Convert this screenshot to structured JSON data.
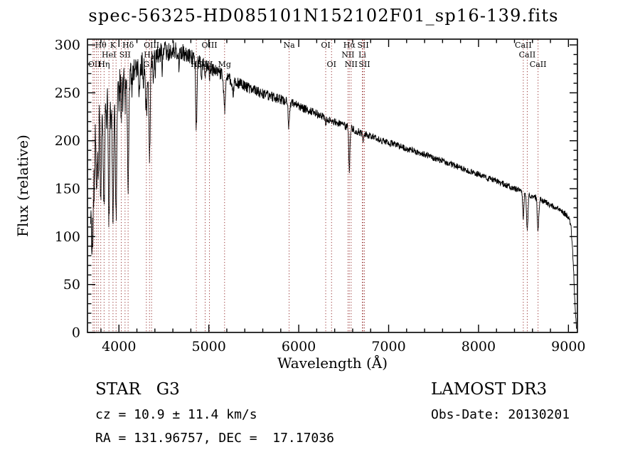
{
  "title": "spec-56325-HD085101N152102F01_sp16-139.fits",
  "footer": {
    "class_label": "STAR   G3",
    "survey": "LAMOST DR3",
    "cz": "cz = 10.9 ± 11.4 km/s",
    "obs_date": "Obs-Date: 20130201",
    "coords": "RA = 131.96757, DEC =  17.17036"
  },
  "chart_data": {
    "type": "line",
    "title": "spec-56325-HD085101N152102F01_sp16-139.fits",
    "xlabel": "Wavelength (Å)",
    "ylabel": "Flux (relative)",
    "xlim": [
      3650,
      9100
    ],
    "ylim": [
      0,
      306
    ],
    "xticks": [
      4000,
      5000,
      6000,
      7000,
      8000,
      9000
    ],
    "yticks": [
      0,
      50,
      100,
      150,
      200,
      250,
      300
    ],
    "x_minor_step": 200,
    "y_minor_step": 10,
    "grid": false,
    "line_color": "#000000",
    "marker_line_color": "#9b3a3a",
    "spectral_lines": [
      {
        "label": "Hθ",
        "wl": 3798,
        "row": 1
      },
      {
        "label": "K",
        "wl": 3934,
        "row": 1
      },
      {
        "label": "Hδ",
        "wl": 4102,
        "row": 1
      },
      {
        "label": "OIII",
        "wl": 4363,
        "row": 1
      },
      {
        "label": "OIII",
        "wl": 5007,
        "row": 1
      },
      {
        "label": "Na",
        "wl": 5893,
        "row": 1
      },
      {
        "label": "OI",
        "wl": 6300,
        "row": 1
      },
      {
        "label": "Hα",
        "wl": 6563,
        "row": 1
      },
      {
        "label": "SII",
        "wl": 6716,
        "row": 1
      },
      {
        "label": "CaII",
        "wl": 8498,
        "row": 1
      },
      {
        "label": "HeI",
        "wl": 3889,
        "row": 2
      },
      {
        "label": "SII",
        "wl": 4068,
        "row": 2
      },
      {
        "label": "Hγ",
        "wl": 4340,
        "row": 2
      },
      {
        "label": "NII",
        "wl": 6548,
        "row": 2
      },
      {
        "label": "Li",
        "wl": 6707,
        "row": 2
      },
      {
        "label": "CaII",
        "wl": 8542,
        "row": 2
      },
      {
        "label": "OII",
        "wl": 3727,
        "row": 3
      },
      {
        "label": "Hη",
        "wl": 3835,
        "row": 3
      },
      {
        "label": "G",
        "wl": 4305,
        "row": 3
      },
      {
        "label": "Hβ",
        "wl": 4861,
        "row": 3
      },
      {
        "label": "OIII",
        "wl": 4959,
        "row": 3
      },
      {
        "label": "Mg",
        "wl": 5175,
        "row": 3
      },
      {
        "label": "OI",
        "wl": 6365,
        "row": 3
      },
      {
        "label": "NII",
        "wl": 6583,
        "row": 3
      },
      {
        "label": "SII",
        "wl": 6731,
        "row": 3
      },
      {
        "label": "CaII",
        "wl": 8662,
        "row": 3
      },
      {
        "label": "",
        "wl": 3712,
        "row": 0
      },
      {
        "label": "",
        "wl": 3750,
        "row": 0
      },
      {
        "label": "",
        "wl": 3770,
        "row": 0
      },
      {
        "label": "",
        "wl": 3968,
        "row": 0
      },
      {
        "label": "",
        "wl": 4026,
        "row": 0
      }
    ],
    "continuum": [
      [
        3683,
        120
      ],
      [
        3700,
        170
      ],
      [
        3720,
        205
      ],
      [
        3745,
        228
      ],
      [
        3780,
        245
      ],
      [
        3800,
        250
      ],
      [
        3850,
        252
      ],
      [
        3900,
        253
      ],
      [
        3950,
        258
      ],
      [
        4000,
        262
      ],
      [
        4050,
        266
      ],
      [
        4100,
        268
      ],
      [
        4150,
        274
      ],
      [
        4200,
        278
      ],
      [
        4250,
        280
      ],
      [
        4300,
        282
      ],
      [
        4350,
        286
      ],
      [
        4400,
        290
      ],
      [
        4450,
        292
      ],
      [
        4500,
        294
      ],
      [
        4550,
        293
      ],
      [
        4600,
        295
      ],
      [
        4650,
        294
      ],
      [
        4700,
        293
      ],
      [
        4750,
        290
      ],
      [
        4800,
        288
      ],
      [
        4850,
        286
      ],
      [
        4900,
        283
      ],
      [
        4950,
        280
      ],
      [
        5000,
        277
      ],
      [
        5100,
        271
      ],
      [
        5200,
        266
      ],
      [
        5300,
        261
      ],
      [
        5400,
        257
      ],
      [
        5500,
        253
      ],
      [
        5600,
        249
      ],
      [
        5700,
        246
      ],
      [
        5800,
        243
      ],
      [
        5900,
        240
      ],
      [
        6000,
        236
      ],
      [
        6100,
        232
      ],
      [
        6200,
        228
      ],
      [
        6300,
        224
      ],
      [
        6400,
        220
      ],
      [
        6500,
        216
      ],
      [
        6600,
        212
      ],
      [
        6700,
        208
      ],
      [
        6800,
        205
      ],
      [
        6900,
        201
      ],
      [
        7000,
        198
      ],
      [
        7100,
        195
      ],
      [
        7200,
        192
      ],
      [
        7300,
        189
      ],
      [
        7400,
        186
      ],
      [
        7500,
        182
      ],
      [
        7600,
        179
      ],
      [
        7700,
        175
      ],
      [
        7800,
        172
      ],
      [
        7900,
        168
      ],
      [
        8000,
        165
      ],
      [
        8100,
        161
      ],
      [
        8200,
        158
      ],
      [
        8300,
        154
      ],
      [
        8400,
        150
      ],
      [
        8500,
        146
      ],
      [
        8600,
        142
      ],
      [
        8700,
        138
      ],
      [
        8800,
        133
      ],
      [
        8900,
        128
      ],
      [
        8960,
        124
      ],
      [
        9000,
        121
      ],
      [
        9030,
        110
      ],
      [
        9055,
        70
      ],
      [
        9075,
        25
      ],
      [
        9090,
        4
      ]
    ],
    "absorption": [
      [
        3698,
        70,
        5
      ],
      [
        3712,
        80,
        6
      ],
      [
        3727,
        55,
        5
      ],
      [
        3750,
        85,
        6
      ],
      [
        3770,
        95,
        6
      ],
      [
        3798,
        115,
        7
      ],
      [
        3820,
        40,
        4
      ],
      [
        3835,
        125,
        7
      ],
      [
        3860,
        35,
        4
      ],
      [
        3889,
        135,
        7
      ],
      [
        3910,
        40,
        4
      ],
      [
        3934,
        150,
        8
      ],
      [
        3968,
        140,
        8
      ],
      [
        4000,
        30,
        4
      ],
      [
        4026,
        35,
        5
      ],
      [
        4045,
        28,
        4
      ],
      [
        4068,
        30,
        5
      ],
      [
        4102,
        118,
        8
      ],
      [
        4144,
        25,
        5
      ],
      [
        4226,
        35,
        5
      ],
      [
        4271,
        25,
        4
      ],
      [
        4305,
        55,
        9
      ],
      [
        4340,
        105,
        8
      ],
      [
        4383,
        32,
        5
      ],
      [
        4405,
        20,
        4
      ],
      [
        4481,
        18,
        4
      ],
      [
        4668,
        16,
        5
      ],
      [
        4861,
        72,
        7
      ],
      [
        4920,
        18,
        5
      ],
      [
        4959,
        10,
        4
      ],
      [
        5007,
        10,
        4
      ],
      [
        5175,
        35,
        9
      ],
      [
        5270,
        16,
        7
      ],
      [
        5890,
        26,
        7
      ],
      [
        6300,
        8,
        4
      ],
      [
        6563,
        46,
        6
      ],
      [
        6717,
        8,
        4
      ],
      [
        8498,
        26,
        7
      ],
      [
        8542,
        38,
        8
      ],
      [
        8662,
        34,
        8
      ]
    ],
    "noise": {
      "base": 3,
      "blue": 17,
      "scale": 1000
    },
    "legend": "none"
  }
}
